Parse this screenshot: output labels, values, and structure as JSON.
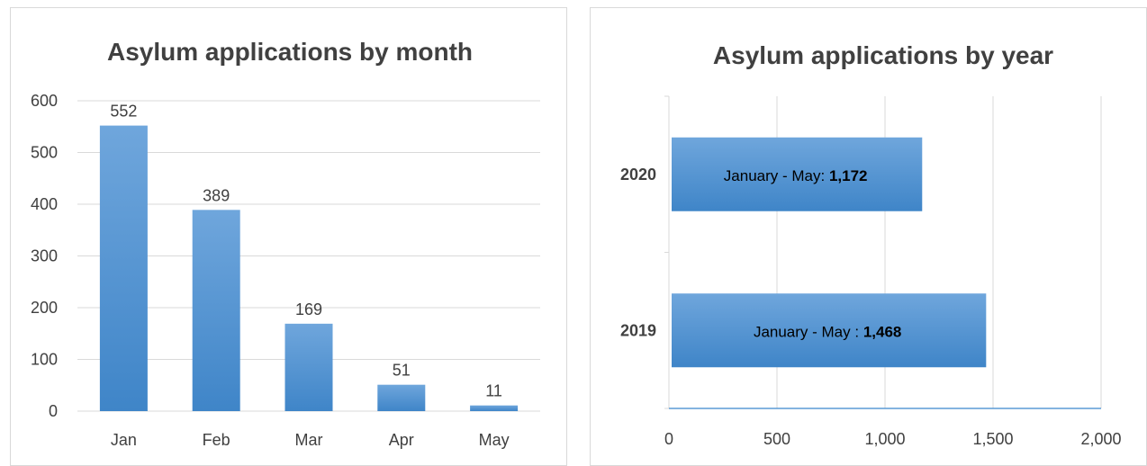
{
  "chart_data": [
    {
      "type": "bar",
      "orientation": "vertical",
      "title": "Asylum applications by month",
      "categories": [
        "Jan",
        "Feb",
        "Mar",
        "Apr",
        "May"
      ],
      "values": [
        552,
        389,
        169,
        51,
        11
      ],
      "data_labels": [
        "552",
        "389",
        "169",
        "51",
        "11"
      ],
      "ylim": [
        0,
        600
      ],
      "yticks": [
        0,
        100,
        200,
        300,
        400,
        500,
        600
      ],
      "ytick_labels": [
        "0",
        "100",
        "200",
        "300",
        "400",
        "500",
        "600"
      ],
      "grid": true,
      "bar_color": "#5b9bd5"
    },
    {
      "type": "bar",
      "orientation": "horizontal",
      "title": "Asylum applications by year",
      "categories": [
        "2020",
        "2019"
      ],
      "values": [
        1172,
        1468
      ],
      "bar_labels": [
        {
          "text": "January - May: ",
          "value_text": "1,172"
        },
        {
          "text": "January - May : ",
          "value_text": "1,468"
        }
      ],
      "xlim": [
        0,
        2000
      ],
      "xticks": [
        0,
        500,
        1000,
        1500,
        2000
      ],
      "xtick_labels": [
        "0",
        "500",
        "1,000",
        "1,500",
        "2,000"
      ],
      "grid": true,
      "bar_color": "#5b9bd5",
      "axis_color": "#5b9bd5"
    }
  ]
}
